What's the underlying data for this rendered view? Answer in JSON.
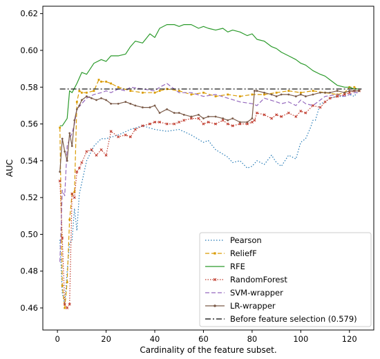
{
  "chart_data": {
    "type": "line",
    "xlabel": "Cardinality of the feature subset.",
    "ylabel": "AUC",
    "xlim": [
      -6,
      130
    ],
    "ylim": [
      0.448,
      0.624
    ],
    "xticks": [
      0,
      20,
      40,
      60,
      80,
      100,
      120
    ],
    "yticks": [
      0.46,
      0.48,
      0.5,
      0.52,
      0.54,
      0.56,
      0.58,
      0.6,
      0.62
    ],
    "grid": false,
    "legend_position": "lower-right",
    "baseline": {
      "name": "Before feature selection (0.579)",
      "value": 0.579,
      "x_range": [
        1,
        125
      ],
      "color": "#000000",
      "dash": "8,3,2,3"
    },
    "series": [
      {
        "name": "Pearson",
        "color": "#1f77b4",
        "dash": "1.5,2.5",
        "marker": "none",
        "x": [
          1,
          2,
          3,
          4,
          5,
          6,
          7,
          8,
          9,
          10,
          12,
          15,
          18,
          20,
          25,
          30,
          35,
          40,
          45,
          50,
          55,
          60,
          62,
          65,
          70,
          72,
          75,
          78,
          80,
          82,
          85,
          88,
          90,
          92,
          95,
          98,
          100,
          102,
          104,
          105,
          106,
          108,
          110,
          112,
          115,
          118,
          120,
          122,
          124
        ],
        "y": [
          0.497,
          0.468,
          0.462,
          0.48,
          0.495,
          0.497,
          0.514,
          0.502,
          0.522,
          0.528,
          0.54,
          0.548,
          0.552,
          0.552,
          0.554,
          0.557,
          0.559,
          0.557,
          0.556,
          0.557,
          0.554,
          0.55,
          0.551,
          0.546,
          0.542,
          0.539,
          0.54,
          0.536,
          0.537,
          0.54,
          0.538,
          0.543,
          0.539,
          0.537,
          0.543,
          0.541,
          0.55,
          0.552,
          0.558,
          0.562,
          0.562,
          0.571,
          0.572,
          0.574,
          0.575,
          0.575,
          0.576,
          0.575,
          0.579
        ]
      },
      {
        "name": "ReliefF",
        "color": "#d99a00",
        "dash": "6,3",
        "marker": "square",
        "x": [
          1,
          2,
          3,
          4,
          5,
          6,
          7,
          8,
          9,
          10,
          12,
          15,
          17,
          18,
          20,
          22,
          25,
          30,
          35,
          40,
          42,
          45,
          50,
          55,
          60,
          65,
          70,
          75,
          80,
          85,
          90,
          95,
          100,
          105,
          110,
          115,
          118,
          120,
          122,
          124
        ],
        "y": [
          0.558,
          0.472,
          0.46,
          0.474,
          0.508,
          0.522,
          0.523,
          0.572,
          0.578,
          0.577,
          0.577,
          0.578,
          0.584,
          0.583,
          0.583,
          0.582,
          0.58,
          0.578,
          0.577,
          0.577,
          0.578,
          0.579,
          0.578,
          0.576,
          0.577,
          0.575,
          0.576,
          0.575,
          0.576,
          0.576,
          0.577,
          0.578,
          0.577,
          0.578,
          0.577,
          0.576,
          0.577,
          0.58,
          0.58,
          0.578
        ]
      },
      {
        "name": "RFE",
        "color": "#2a9a2a",
        "dash": "",
        "marker": "none",
        "x": [
          1,
          2,
          4,
          5,
          6,
          8,
          10,
          12,
          15,
          18,
          20,
          22,
          25,
          28,
          30,
          32,
          35,
          38,
          40,
          42,
          45,
          48,
          50,
          52,
          55,
          58,
          60,
          62,
          65,
          68,
          70,
          72,
          75,
          78,
          80,
          82,
          85,
          88,
          90,
          92,
          95,
          98,
          100,
          102,
          105,
          108,
          110,
          112,
          115,
          118,
          120,
          122,
          124
        ],
        "y": [
          0.559,
          0.559,
          0.563,
          0.578,
          0.577,
          0.582,
          0.588,
          0.587,
          0.593,
          0.595,
          0.594,
          0.597,
          0.597,
          0.598,
          0.602,
          0.605,
          0.604,
          0.609,
          0.607,
          0.612,
          0.614,
          0.614,
          0.613,
          0.614,
          0.614,
          0.612,
          0.613,
          0.612,
          0.611,
          0.612,
          0.61,
          0.611,
          0.61,
          0.608,
          0.609,
          0.606,
          0.605,
          0.602,
          0.601,
          0.599,
          0.597,
          0.595,
          0.593,
          0.592,
          0.589,
          0.587,
          0.586,
          0.584,
          0.581,
          0.58,
          0.58,
          0.579,
          0.579
        ]
      },
      {
        "name": "RandomForest",
        "color": "#c0392b",
        "dash": "1.5,2",
        "marker": "x",
        "x": [
          1,
          2,
          3,
          4,
          5,
          6,
          7,
          8,
          9,
          10,
          12,
          14,
          16,
          18,
          20,
          22,
          25,
          28,
          30,
          32,
          35,
          38,
          40,
          42,
          45,
          48,
          50,
          52,
          55,
          58,
          60,
          62,
          65,
          68,
          70,
          72,
          75,
          78,
          80,
          81,
          82,
          85,
          88,
          90,
          92,
          95,
          98,
          100,
          102,
          105,
          108,
          110,
          112,
          115,
          118,
          120,
          122,
          124
        ],
        "y": [
          0.529,
          0.498,
          0.462,
          0.46,
          0.462,
          0.522,
          0.52,
          0.534,
          0.536,
          0.539,
          0.545,
          0.546,
          0.543,
          0.546,
          0.543,
          0.556,
          0.553,
          0.554,
          0.553,
          0.557,
          0.559,
          0.56,
          0.561,
          0.561,
          0.56,
          0.56,
          0.561,
          0.562,
          0.563,
          0.563,
          0.56,
          0.561,
          0.56,
          0.562,
          0.56,
          0.559,
          0.56,
          0.56,
          0.561,
          0.562,
          0.566,
          0.565,
          0.563,
          0.565,
          0.564,
          0.566,
          0.564,
          0.567,
          0.566,
          0.57,
          0.569,
          0.572,
          0.574,
          0.575,
          0.576,
          0.577,
          0.578,
          0.578
        ]
      },
      {
        "name": "SVM-wrapper",
        "color": "#9467bd",
        "dash": "6,3",
        "marker": "none",
        "x": [
          1,
          2,
          3,
          4,
          5,
          6,
          7,
          8,
          10,
          12,
          15,
          18,
          20,
          22,
          25,
          28,
          30,
          35,
          40,
          42,
          45,
          50,
          55,
          60,
          65,
          70,
          75,
          80,
          82,
          85,
          90,
          92,
          95,
          98,
          100,
          102,
          105,
          108,
          110,
          115,
          118,
          120,
          122,
          124
        ],
        "y": [
          0.485,
          0.524,
          0.521,
          0.548,
          0.552,
          0.555,
          0.56,
          0.568,
          0.571,
          0.574,
          0.576,
          0.577,
          0.578,
          0.577,
          0.579,
          0.578,
          0.58,
          0.579,
          0.578,
          0.58,
          0.582,
          0.577,
          0.577,
          0.575,
          0.576,
          0.574,
          0.572,
          0.571,
          0.57,
          0.574,
          0.572,
          0.571,
          0.572,
          0.57,
          0.573,
          0.571,
          0.57,
          0.573,
          0.575,
          0.576,
          0.575,
          0.576,
          0.577,
          0.577
        ]
      },
      {
        "name": "LR-wrapper",
        "color": "#7a5a48",
        "dash": "",
        "marker": "dot",
        "x": [
          1,
          2,
          3,
          4,
          5,
          6,
          7,
          8,
          9,
          10,
          12,
          14,
          16,
          18,
          20,
          22,
          25,
          28,
          30,
          32,
          35,
          38,
          40,
          42,
          45,
          48,
          50,
          52,
          55,
          58,
          60,
          62,
          65,
          68,
          70,
          72,
          75,
          78,
          80,
          81,
          82,
          85,
          88,
          90,
          92,
          95,
          98,
          100,
          102,
          105,
          108,
          110,
          112,
          115,
          118,
          120,
          122,
          124
        ],
        "y": [
          0.534,
          0.552,
          0.545,
          0.54,
          0.555,
          0.548,
          0.562,
          0.568,
          0.57,
          0.573,
          0.575,
          0.574,
          0.573,
          0.574,
          0.573,
          0.571,
          0.571,
          0.572,
          0.571,
          0.57,
          0.569,
          0.569,
          0.57,
          0.566,
          0.568,
          0.566,
          0.566,
          0.565,
          0.564,
          0.565,
          0.563,
          0.564,
          0.564,
          0.563,
          0.562,
          0.563,
          0.561,
          0.561,
          0.563,
          0.578,
          0.578,
          0.577,
          0.576,
          0.575,
          0.576,
          0.576,
          0.575,
          0.576,
          0.575,
          0.576,
          0.577,
          0.577,
          0.577,
          0.578,
          0.577,
          0.578,
          0.578,
          0.578
        ]
      }
    ]
  }
}
